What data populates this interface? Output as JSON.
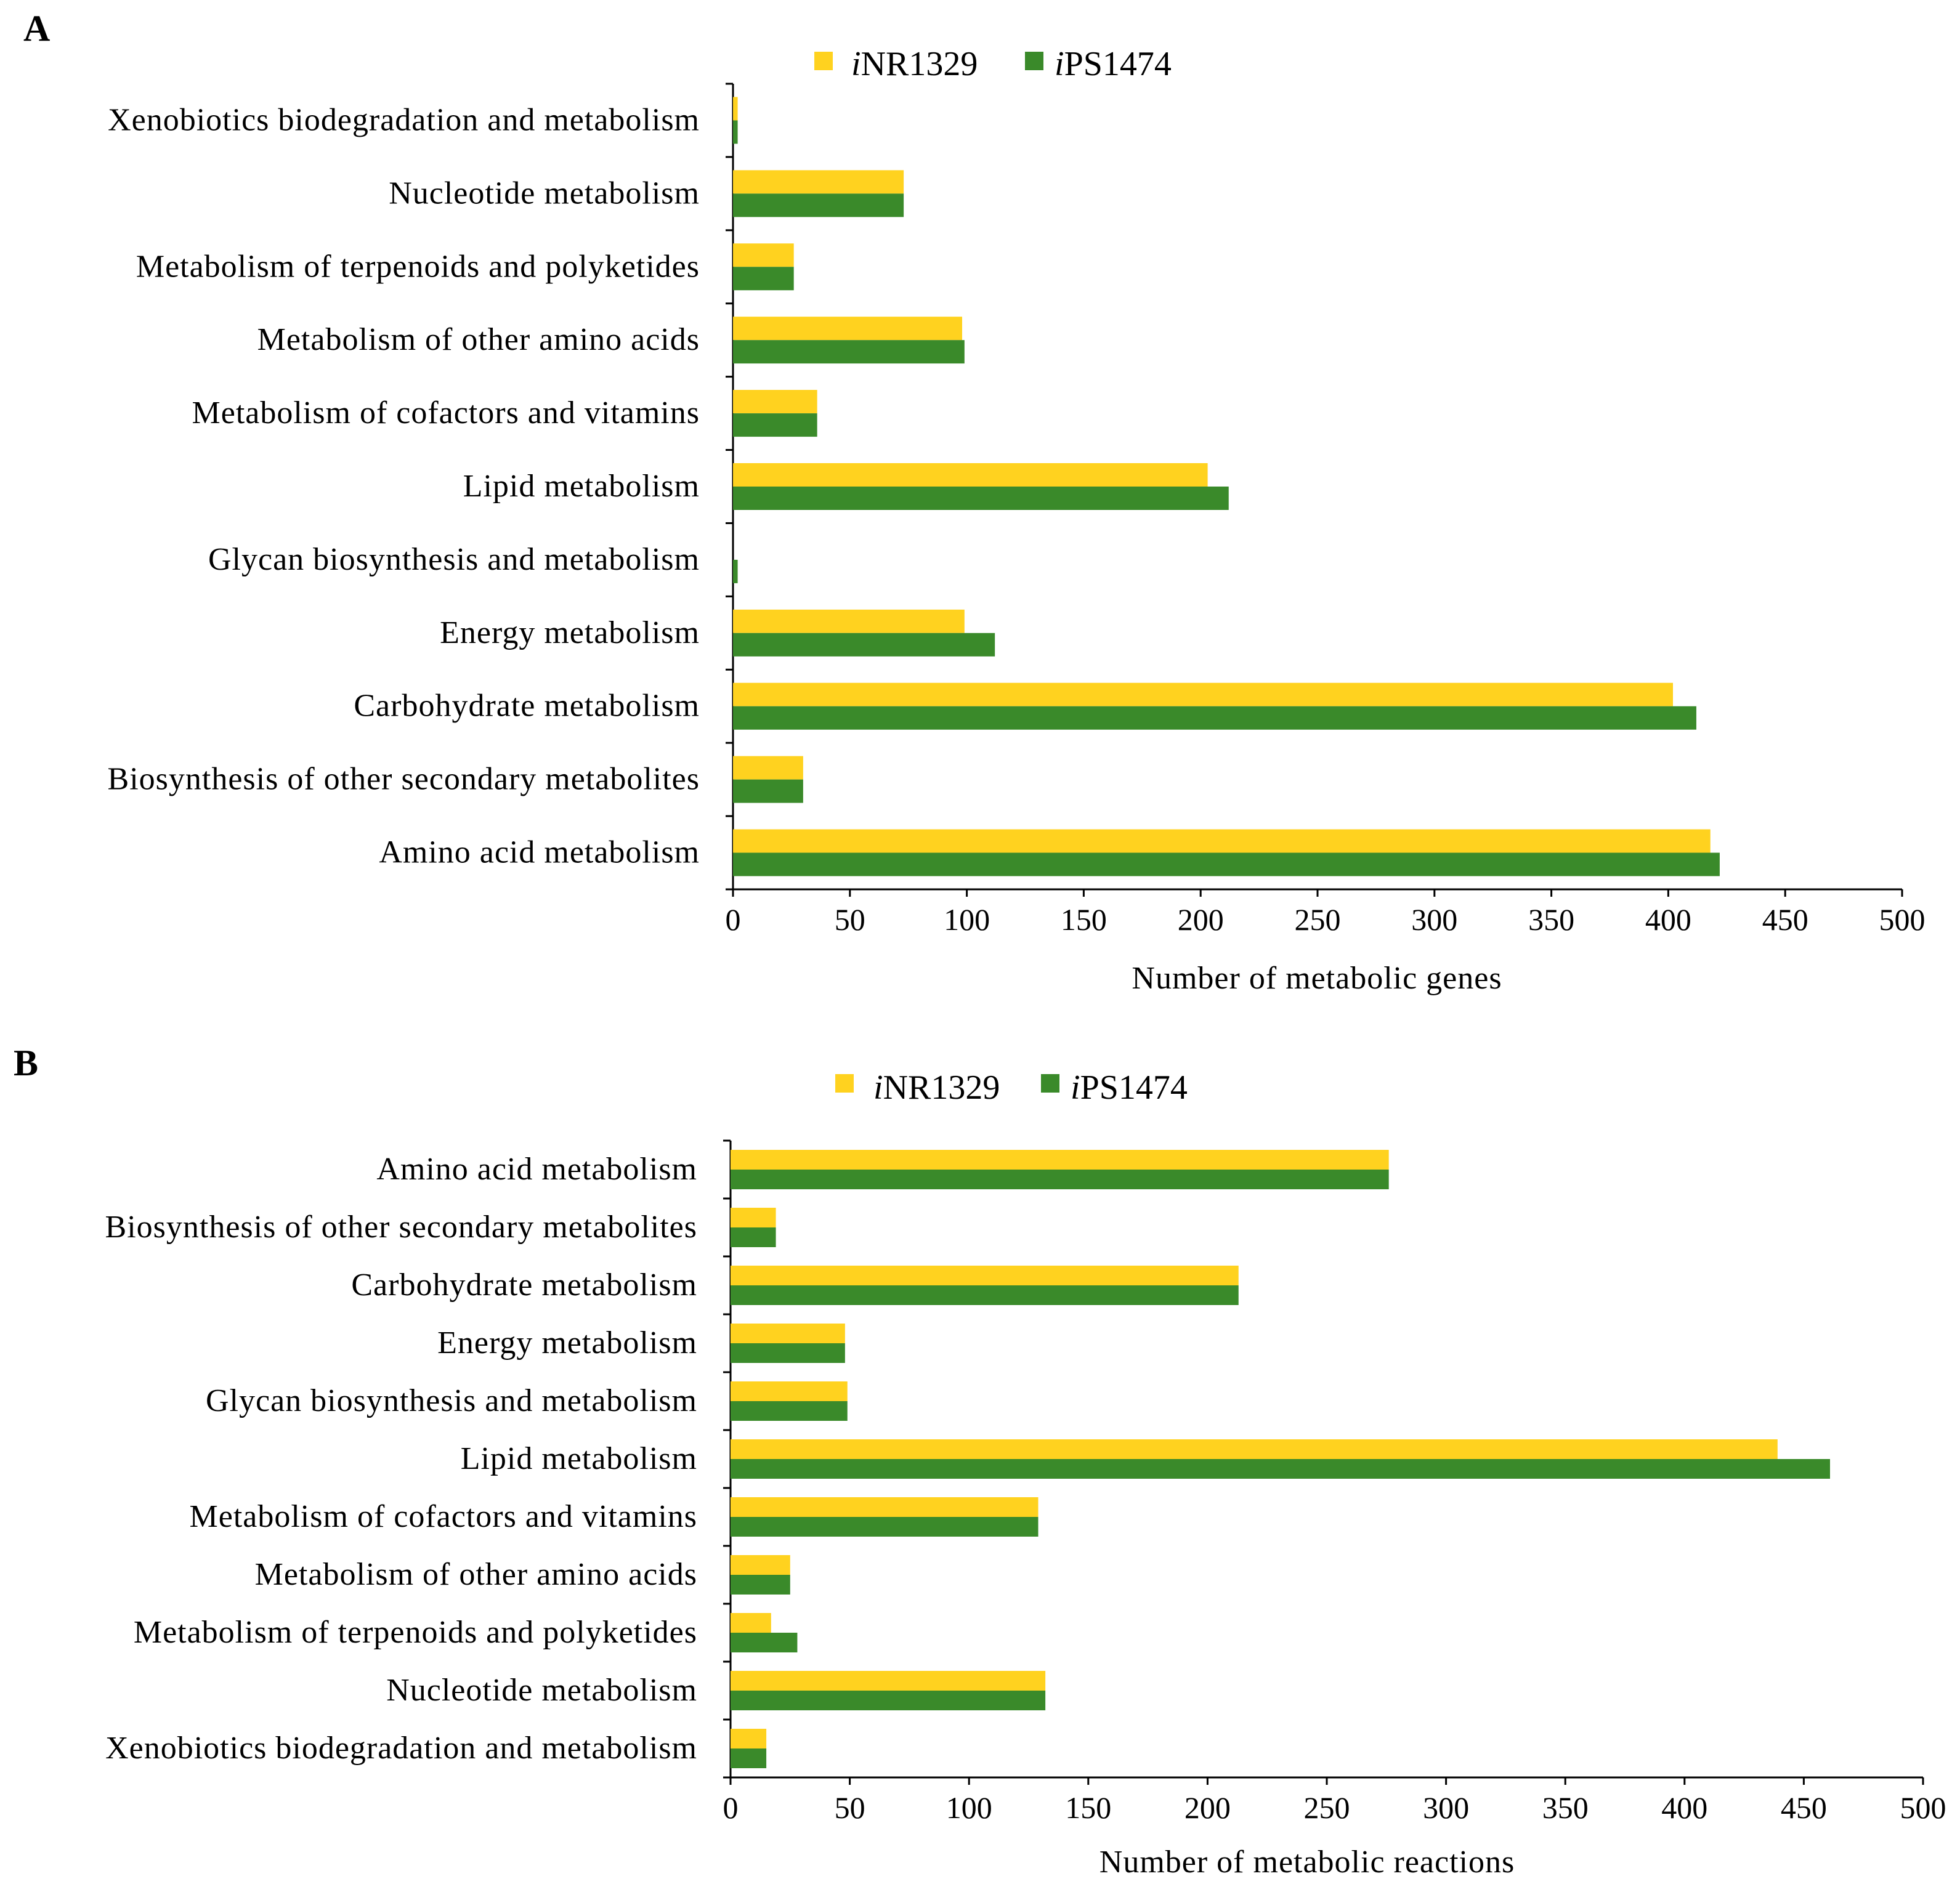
{
  "colors": {
    "series1": "#FFD21F",
    "series2": "#3A8A2A",
    "axis": "#000000"
  },
  "legend_items": [
    {
      "prefix": "i",
      "label": "NR1329"
    },
    {
      "prefix": "i",
      "label": "PS1474"
    }
  ],
  "chart_data": [
    {
      "panel": "A",
      "type": "bar",
      "orientation": "horizontal",
      "xlabel": "Number of metabolic genes",
      "xlim": [
        0,
        500
      ],
      "xticks": [
        0,
        50,
        100,
        150,
        200,
        250,
        300,
        350,
        400,
        450,
        500
      ],
      "categories": [
        "Xenobiotics biodegradation and metabolism",
        "Nucleotide metabolism",
        "Metabolism of terpenoids and polyketides",
        "Metabolism of other amino acids",
        "Metabolism of cofactors and vitamins",
        "Lipid metabolism",
        "Glycan biosynthesis and metabolism",
        "Energy metabolism",
        "Carbohydrate metabolism",
        "Biosynthesis of other secondary metabolites",
        "Amino acid metabolism"
      ],
      "series": [
        {
          "name": "iNR1329",
          "values": [
            2,
            73,
            26,
            98,
            36,
            203,
            0,
            99,
            402,
            30,
            418
          ]
        },
        {
          "name": "iPS1474",
          "values": [
            2,
            73,
            26,
            99,
            36,
            212,
            2,
            112,
            412,
            30,
            422
          ]
        }
      ],
      "legend": "top-center"
    },
    {
      "panel": "B",
      "type": "bar",
      "orientation": "horizontal",
      "xlabel": "Number of metabolic reactions",
      "xlim": [
        0,
        500
      ],
      "xticks": [
        0,
        50,
        100,
        150,
        200,
        250,
        300,
        350,
        400,
        450,
        500
      ],
      "categories": [
        "Amino acid metabolism",
        "Biosynthesis of other secondary metabolites",
        "Carbohydrate metabolism",
        "Energy metabolism",
        "Glycan biosynthesis and metabolism",
        "Lipid metabolism",
        "Metabolism of cofactors and vitamins",
        "Metabolism of other amino acids",
        "Metabolism of terpenoids and polyketides",
        "Nucleotide metabolism",
        "Xenobiotics biodegradation and metabolism"
      ],
      "series": [
        {
          "name": "iNR1329",
          "values": [
            276,
            19,
            213,
            48,
            49,
            439,
            129,
            25,
            17,
            132,
            15
          ]
        },
        {
          "name": "iPS1474",
          "values": [
            276,
            19,
            213,
            48,
            49,
            461,
            129,
            25,
            28,
            132,
            15
          ]
        }
      ],
      "legend": "top-center"
    }
  ]
}
